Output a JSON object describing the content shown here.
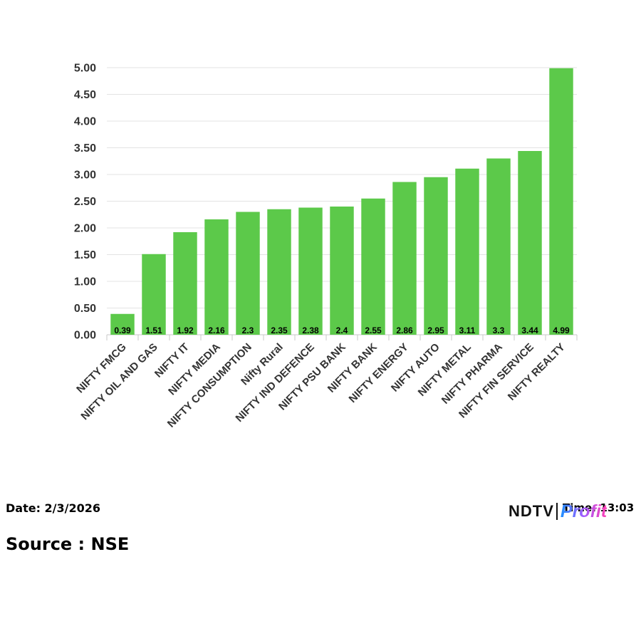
{
  "chart_data": {
    "type": "bar",
    "categories": [
      "NIFTY FMCG",
      "NIFTY OIL AND GAS",
      "NIFTY IT",
      "NIFTY MEDIA",
      "NIFTY CONSUMPTION",
      "Nifty Rural",
      "NIFTY IND DEFENCE",
      "NIFTY PSU BANK",
      "NIFTY BANK",
      "NIFTY ENERGY",
      "NIFTY AUTO",
      "NIFTY METAL",
      "NIFTY PHARMA",
      "NIFTY FIN SERVICE",
      "NIFTY REALTY"
    ],
    "values": [
      0.39,
      1.51,
      1.92,
      2.16,
      2.3,
      2.35,
      2.38,
      2.4,
      2.55,
      2.86,
      2.95,
      3.11,
      3.3,
      3.44,
      4.99
    ],
    "data_labels": [
      "0.39",
      "1.51",
      "1.92",
      "2.16",
      "2.3",
      "2.35",
      "2.38",
      "2.4",
      "2.55",
      "2.86",
      "2.95",
      "3.11",
      "3.3",
      "3.44",
      "4.99"
    ],
    "yticks": [
      "0.00",
      "0.50",
      "1.00",
      "1.50",
      "2.00",
      "2.50",
      "3.00",
      "3.50",
      "4.00",
      "4.50",
      "5.00"
    ],
    "ylim": [
      0,
      5
    ],
    "grid": true,
    "bar_color": "#5cc94a"
  },
  "footer": {
    "date": "Date: 2/3/2026",
    "time": "Time: 13:03",
    "source": "Source : NSE"
  },
  "logo": {
    "brand": "NDTV",
    "product": "Profit"
  }
}
